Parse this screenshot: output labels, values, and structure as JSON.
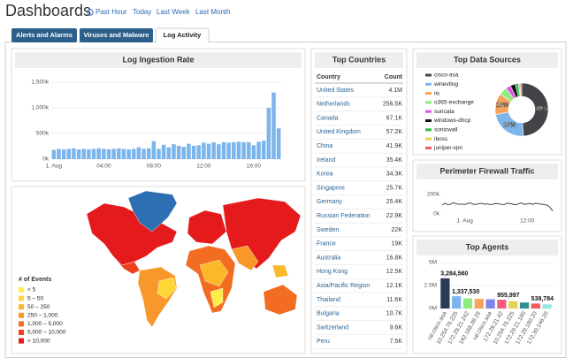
{
  "header": {
    "title": "Dashboards",
    "links": [
      "Past Hour",
      "Today",
      "Last Week",
      "Last Month"
    ]
  },
  "tabs": [
    "Alerts and Alarms",
    "Viruses and Malware",
    "Log Activity"
  ],
  "log_ingestion": {
    "type": "bar",
    "title": "Log Ingestion Rate",
    "color": "#7cb5ec",
    "grid": true,
    "categories": [
      "1. Aug",
      null,
      null,
      null,
      null,
      null,
      null,
      null,
      null,
      null,
      "04:00",
      null,
      null,
      null,
      null,
      null,
      null,
      null,
      null,
      null,
      "08:00",
      null,
      null,
      null,
      null,
      null,
      null,
      null,
      null,
      null,
      "12:00",
      null,
      null,
      null,
      null,
      null,
      null,
      null,
      null,
      null,
      "16:00",
      null,
      null,
      null,
      null,
      null
    ],
    "values": [
      180000,
      200000,
      190000,
      200000,
      210000,
      190000,
      200000,
      190000,
      200000,
      210000,
      200000,
      190000,
      200000,
      210000,
      200000,
      190000,
      200000,
      230000,
      200000,
      210000,
      350000,
      200000,
      280000,
      230000,
      290000,
      260000,
      240000,
      300000,
      260000,
      270000,
      320000,
      300000,
      330000,
      290000,
      330000,
      320000,
      330000,
      340000,
      330000,
      330000,
      270000,
      340000,
      360000,
      1000000,
      1300000,
      600000
    ],
    "ylim": [
      0,
      1500000
    ],
    "yticks": [
      {
        "value": 0,
        "label": "0k"
      },
      {
        "value": 500000,
        "label": "500k"
      },
      {
        "value": 1000000,
        "label": "1,000k"
      },
      {
        "value": 1500000,
        "label": "1,500k"
      }
    ]
  },
  "world_map": {
    "legend_title": "# of Events",
    "legend": [
      {
        "label": "< 5",
        "color": "#ffed4a"
      },
      {
        "label": "5 – 50",
        "color": "#fdd835"
      },
      {
        "label": "50 – 250",
        "color": "#fbb829"
      },
      {
        "label": "250 – 1,000",
        "color": "#f9982a"
      },
      {
        "label": "1,000 – 5,000",
        "color": "#f26c21"
      },
      {
        "label": "5,000 – 10,000",
        "color": "#ee3f1f"
      },
      {
        "label": "> 10,000",
        "color": "#e41a1c"
      }
    ]
  },
  "top_countries": {
    "title": "Top Countries",
    "columns": [
      "Country",
      "Count"
    ],
    "rows": [
      [
        "United States",
        "4.1M"
      ],
      [
        "Netherlands",
        "256.5K"
      ],
      [
        "Canada",
        "67.1K"
      ],
      [
        "United Kingdom",
        "57.2K"
      ],
      [
        "China",
        "41.9K"
      ],
      [
        "Ireland",
        "35.4K"
      ],
      [
        "Korea",
        "34.3K"
      ],
      [
        "Singapore",
        "25.7K"
      ],
      [
        "Germany",
        "25.4K"
      ],
      [
        "Russian Federation",
        "22.9K"
      ],
      [
        "Sweden",
        "22K"
      ],
      [
        "France",
        "19K"
      ],
      [
        "Australia",
        "16.8K"
      ],
      [
        "Hong Kong",
        "12.5K"
      ],
      [
        "Asia/Pacific Region",
        "12.1K"
      ],
      [
        "Thailand",
        "11.6K"
      ],
      [
        "Bulgaria",
        "10.7K"
      ],
      [
        "Switzerland",
        "9.6K"
      ],
      [
        "Peru",
        "7.5K"
      ]
    ]
  },
  "top_data_sources": {
    "type": "pie",
    "title": "Top Data Sources",
    "categories": [
      "cisco-asa",
      "winevtlog",
      "iis",
      "o365-exchange",
      "suricata",
      "windows-dhcp",
      "sonicwall",
      "iboss",
      "juniper-vpn"
    ],
    "values": [
      49,
      23,
      13,
      5,
      3,
      3,
      2,
      1,
      1
    ],
    "value_labels": [
      "49%",
      "23%",
      "13%",
      null,
      null,
      null,
      null,
      null,
      null
    ],
    "colors": [
      "#434348",
      "#7cb5ec",
      "#f7a35c",
      "#90ed7d",
      "#e453e4",
      "#111111",
      "#2fbf4f",
      "#e4d354",
      "#f45b5b"
    ]
  },
  "firewall": {
    "type": "line",
    "title": "Perimeter Firewall Traffic",
    "color": "#333333",
    "grid": false,
    "categories": [
      null,
      null,
      null,
      null,
      null,
      null,
      null,
      null,
      "1. Aug",
      null,
      null,
      null,
      null,
      null,
      null,
      null,
      null,
      null,
      null,
      null,
      null,
      null,
      null,
      null,
      null,
      null,
      null,
      null,
      null,
      null,
      "12:00",
      null,
      null,
      null,
      null,
      null,
      null,
      null,
      null,
      null
    ],
    "values": [
      90000,
      110000,
      95000,
      100000,
      115000,
      105000,
      98000,
      102000,
      96000,
      108000,
      112000,
      100000,
      97000,
      106000,
      110000,
      99000,
      104000,
      95000,
      101000,
      109000,
      103000,
      98000,
      96000,
      111000,
      107000,
      100000,
      94000,
      105000,
      112000,
      99000,
      103000,
      108000,
      97000,
      110000,
      104000,
      100000,
      96000,
      90000,
      70000,
      30000
    ],
    "ylim": [
      0,
      250000
    ],
    "yticks": [
      {
        "value": 0,
        "label": "0k"
      },
      {
        "value": 200000,
        "label": "200k"
      }
    ]
  },
  "top_agents": {
    "type": "bar",
    "title": "Top Agents",
    "grid": true,
    "categories": [
      "ral.cisco.asa",
      "10.254.76.225",
      "172.29.21.242",
      "192.168.38.29",
      "ral.cisco.asa",
      "172.29.21.42",
      "10.254.76.225",
      "172.29.21.180",
      "172.29.180.20",
      "172.30.146.20"
    ],
    "values": [
      3284560,
      1337530,
      1100000,
      1050000,
      1000000,
      955997,
      800000,
      650000,
      538784,
      450000
    ],
    "value_labels": [
      "3,284,560",
      "1,337,530",
      null,
      null,
      null,
      "955,997",
      null,
      null,
      "538,784",
      null
    ],
    "colors": [
      "#2b3a55",
      "#7cb5ec",
      "#90ed7d",
      "#f7a35c",
      "#8085e9",
      "#f15c80",
      "#e4d354",
      "#2b908f",
      "#f45b5b",
      "#91e8e1"
    ],
    "ylim": [
      0,
      5000000
    ],
    "yticks": [
      {
        "value": 0,
        "label": "0M"
      },
      {
        "value": 2500000,
        "label": "2.5M"
      },
      {
        "value": 5000000,
        "label": "5M"
      }
    ]
  }
}
